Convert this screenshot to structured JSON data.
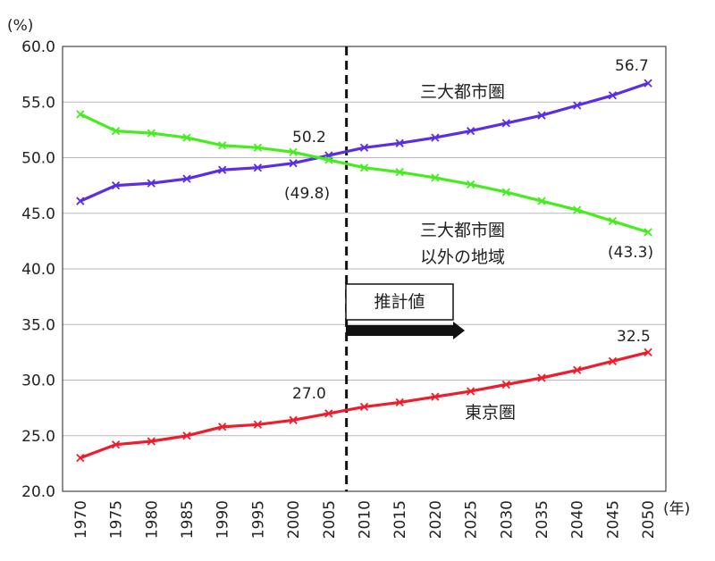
{
  "chart_data": {
    "type": "line",
    "x": [
      1970,
      1975,
      1980,
      1985,
      1990,
      1995,
      2000,
      2005,
      2010,
      2015,
      2020,
      2025,
      2030,
      2035,
      2040,
      2045,
      2050
    ],
    "x_tick_labels": [
      "1970",
      "1975",
      "1980",
      "1985",
      "1990",
      "1995",
      "2000",
      "2005",
      "2010",
      "2015",
      "2020",
      "2025",
      "2030",
      "2035",
      "2040",
      "2045",
      "2050"
    ],
    "xlabel": "(年)",
    "ylabel": "(%)",
    "ylim": [
      20,
      60
    ],
    "y_ticks": [
      "20.0",
      "25.0",
      "30.0",
      "35.0",
      "40.0",
      "45.0",
      "50.0",
      "55.0",
      "60.0"
    ],
    "grid": true,
    "divider_after": 2005,
    "projection_label": "推計値",
    "series": [
      {
        "name": "三大都市圏",
        "color": "#5b2ee6",
        "values": [
          46.1,
          47.5,
          47.7,
          48.1,
          48.9,
          49.1,
          49.5,
          50.2,
          50.9,
          51.3,
          51.8,
          52.4,
          53.1,
          53.8,
          54.7,
          55.6,
          56.7
        ]
      },
      {
        "name": "三大都市圏以外の地域",
        "name_lines": [
          "三大都市圏",
          "以外の地域"
        ],
        "color": "#44ee1c",
        "values": [
          53.9,
          52.4,
          52.2,
          51.8,
          51.1,
          50.9,
          50.5,
          49.8,
          49.1,
          48.7,
          48.2,
          47.6,
          46.9,
          46.1,
          45.3,
          44.3,
          43.3
        ]
      },
      {
        "name": "東京圏",
        "color": "#ee1c2c",
        "values": [
          23.0,
          24.2,
          24.5,
          25.0,
          25.8,
          26.0,
          26.4,
          27.0,
          27.6,
          28.0,
          28.5,
          29.0,
          29.6,
          30.2,
          30.9,
          31.7,
          32.5
        ]
      }
    ],
    "annotations": [
      "56.7",
      "50.2",
      "(49.8)",
      "(43.3)",
      "27.0",
      "32.5"
    ]
  }
}
